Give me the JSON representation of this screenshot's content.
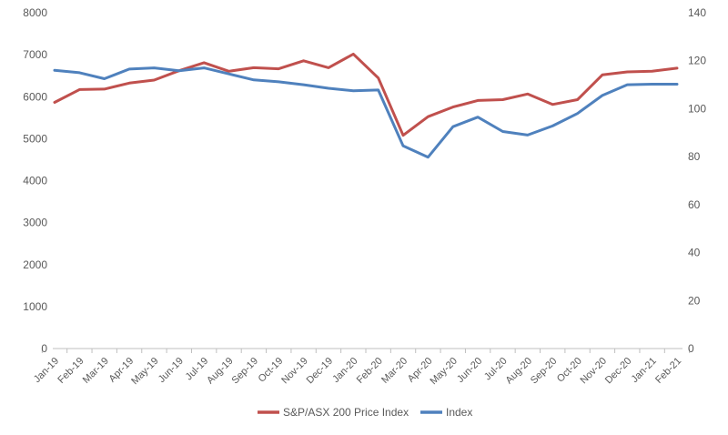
{
  "chart_data": {
    "type": "line",
    "title": "",
    "xlabel": "",
    "ylabel": "",
    "y2label": "",
    "categories": [
      "Jan-19",
      "Feb-19",
      "Mar-19",
      "Apr-19",
      "May-19",
      "Jun-19",
      "Jul-19",
      "Aug-19",
      "Sep-19",
      "Oct-19",
      "Nov-19",
      "Dec-19",
      "Jan-20",
      "Feb-20",
      "Mar-20",
      "Apr-20",
      "May-20",
      "Jun-20",
      "Jul-20",
      "Aug-20",
      "Sep-20",
      "Oct-20",
      "Nov-20",
      "Dec-20",
      "Jan-21",
      "Feb-21"
    ],
    "ylim": [
      0,
      8000
    ],
    "yticks": [
      "0",
      "1000",
      "2000",
      "3000",
      "4000",
      "5000",
      "6000",
      "7000",
      "8000"
    ],
    "y2lim": [
      0,
      140
    ],
    "y2ticks": [
      "0",
      "20",
      "40",
      "60",
      "80",
      "100",
      "120",
      "140"
    ],
    "grid": false,
    "legend_position": "bottom",
    "series": [
      {
        "name": "S&P/ASX 200  Price Index",
        "axis": "left",
        "color": "#c0504d",
        "values": [
          5865,
          6170,
          6180,
          6325,
          6395,
          6620,
          6810,
          6605,
          6690,
          6665,
          6855,
          6690,
          7015,
          6445,
          5080,
          5525,
          5755,
          5910,
          5930,
          6065,
          5815,
          5930,
          6520,
          6590,
          6605,
          6680
        ]
      },
      {
        "name": "Index",
        "axis": "right",
        "color": "#4f81bd",
        "values": [
          116.0,
          115.0,
          112.5,
          116.5,
          117.0,
          115.8,
          117.0,
          114.5,
          112.0,
          111.2,
          110.0,
          108.5,
          107.5,
          107.8,
          84.5,
          79.8,
          92.5,
          96.5,
          90.5,
          89.0,
          92.8,
          98.0,
          105.5,
          110.0,
          110.2,
          110.2
        ]
      }
    ]
  }
}
